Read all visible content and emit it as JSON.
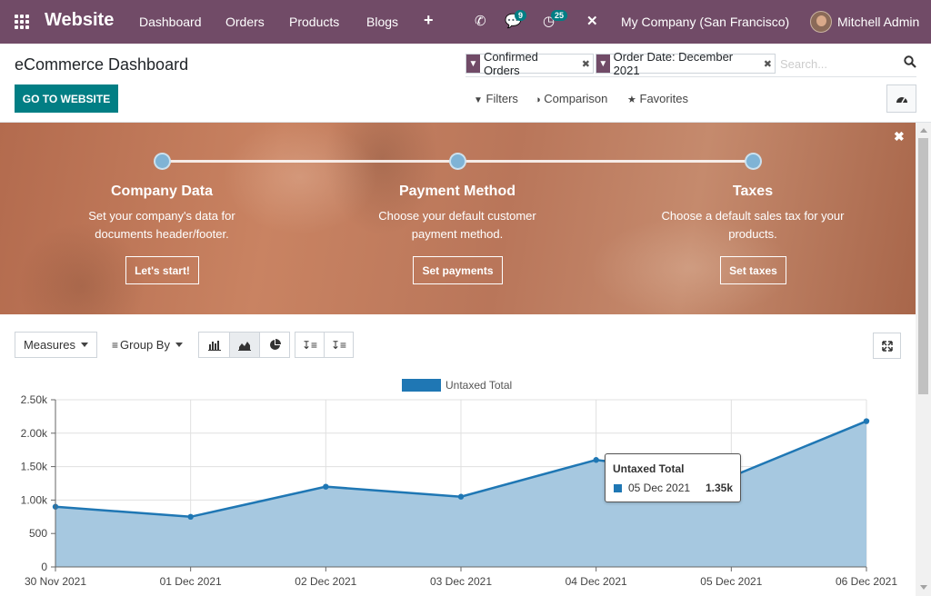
{
  "navbar": {
    "brand": "Website",
    "menu": [
      "Dashboard",
      "Orders",
      "Products",
      "Blogs"
    ],
    "messages_badge": "9",
    "activities_badge": "25",
    "company": "My Company (San Francisco)",
    "user": "Mitchell Admin",
    "accent_color": "#714b67"
  },
  "control_panel": {
    "title": "eCommerce Dashboard",
    "facets": [
      "Confirmed Orders",
      "Order Date: December 2021"
    ],
    "search_placeholder": "Search...",
    "primary_button": "GO TO WEBSITE",
    "filters": "Filters",
    "comparison": "Comparison",
    "favorites": "Favorites"
  },
  "banner": {
    "steps": [
      {
        "title": "Company Data",
        "desc1": "Set your company's data for",
        "desc2": "documents header/footer.",
        "button": "Let's start!"
      },
      {
        "title": "Payment Method",
        "desc1": "Choose your default customer",
        "desc2": "payment method.",
        "button": "Set payments"
      },
      {
        "title": "Taxes",
        "desc1": "Choose a default sales tax for your",
        "desc2": "products.",
        "button": "Set taxes"
      }
    ]
  },
  "toolbar": {
    "measures": "Measures",
    "group_by": "Group By",
    "active_chart": "line"
  },
  "chart_data": {
    "type": "area",
    "categories": [
      "30 Nov 2021",
      "01 Dec 2021",
      "02 Dec 2021",
      "03 Dec 2021",
      "04 Dec 2021",
      "05 Dec 2021",
      "06 Dec 2021"
    ],
    "series": [
      {
        "name": "Untaxed Total",
        "values": [
          900,
          750,
          1200,
          1050,
          1600,
          1350,
          2180
        ]
      }
    ],
    "y_ticks": [
      "0",
      "500",
      "1.00k",
      "1.50k",
      "2.00k",
      "2.50k"
    ],
    "ylim": [
      0,
      2500
    ],
    "grid": true,
    "legend": "top-center",
    "line_color": "#1f77b4",
    "fill_color": "#a6c8e0"
  },
  "tooltip": {
    "title": "Untaxed Total",
    "label": "05 Dec 2021",
    "value": "1.35k"
  }
}
